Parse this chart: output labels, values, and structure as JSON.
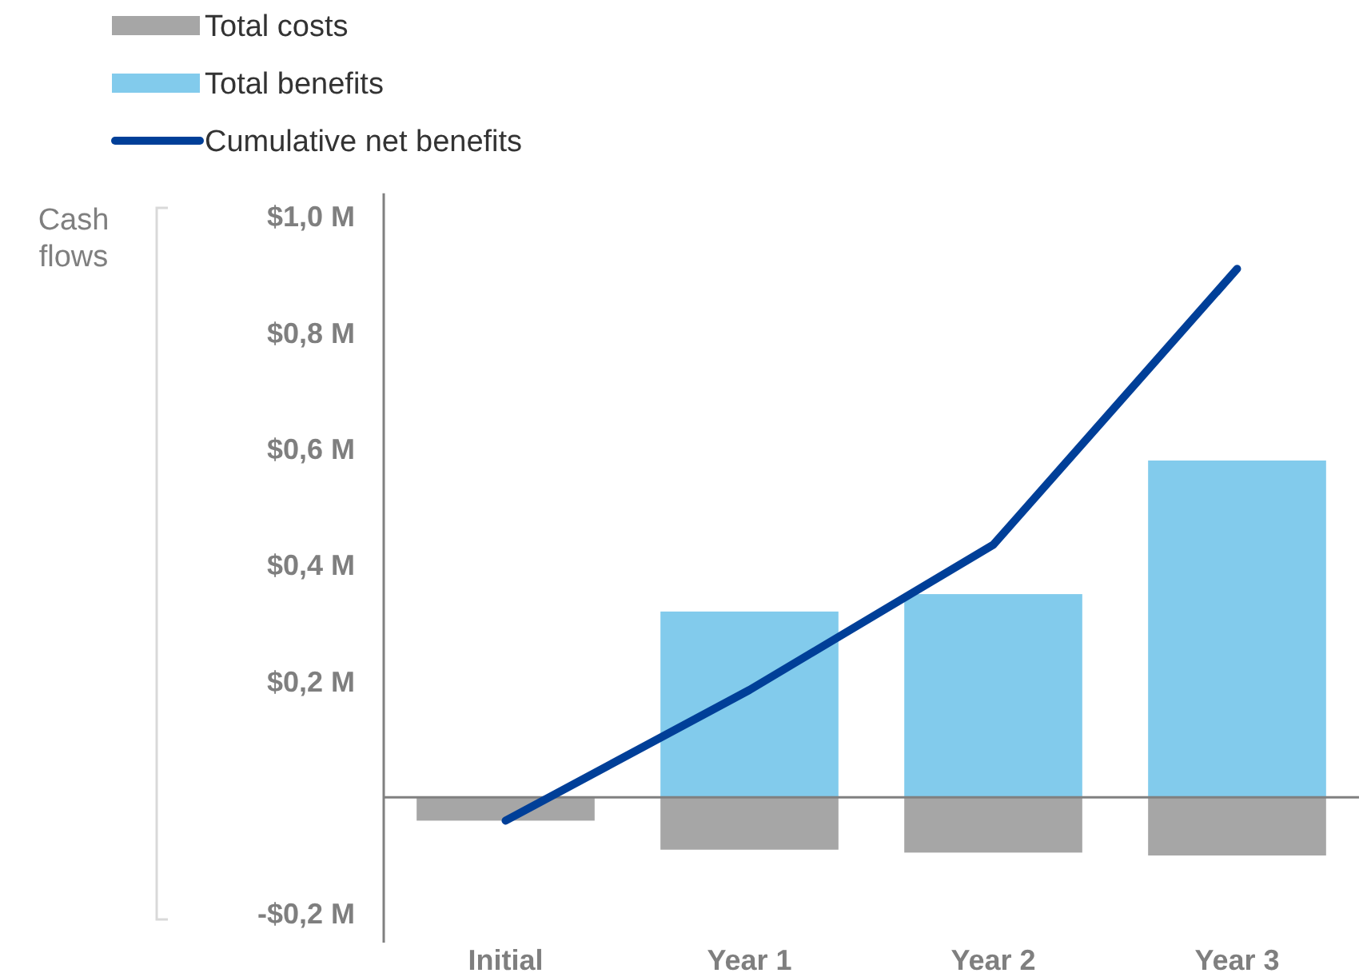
{
  "chart_data": {
    "type": "bar",
    "stacked": true,
    "ylabel": "Cash flows",
    "categories": [
      "Initial",
      "Year 1",
      "Year 2",
      "Year 3"
    ],
    "series": [
      {
        "name": "Total costs",
        "color": "#a6a6a6",
        "values": [
          -0.04,
          -0.09,
          -0.095,
          -0.1
        ]
      },
      {
        "name": "Total benefits",
        "color": "#82cbec",
        "values": [
          0,
          0.32,
          0.35,
          0.58
        ]
      },
      {
        "name": "Cumulative net benefits",
        "type": "line",
        "color": "#003f98",
        "values": [
          -0.04,
          0.185,
          0.435,
          0.91
        ]
      }
    ],
    "ylim": [
      -0.25,
      1.04
    ],
    "yticks": [
      {
        "value": -0.2,
        "label": "-$0,2 M"
      },
      {
        "value": 0.2,
        "label": "$0,2 M"
      },
      {
        "value": 0.4,
        "label": "$0,4 M"
      },
      {
        "value": 0.6,
        "label": "$0,6 M"
      },
      {
        "value": 0.8,
        "label": "$0,8 M"
      },
      {
        "value": 1.0,
        "label": "$1,0 M"
      }
    ],
    "legend": "top left"
  }
}
